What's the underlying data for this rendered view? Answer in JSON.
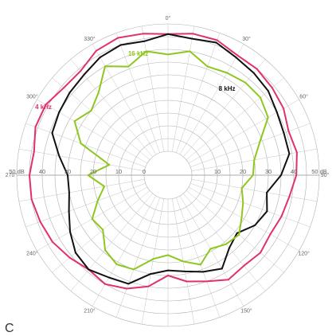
{
  "chart_data": {
    "type": "polar",
    "title": "",
    "grid": true,
    "radial_unit": "dB",
    "radial_range": [
      -50,
      0
    ],
    "ring_step_db": 5,
    "angle_labels": [
      {
        "angle": 0,
        "text": "0°"
      },
      {
        "angle": 30,
        "text": "30°"
      },
      {
        "angle": 60,
        "text": "60°"
      },
      {
        "angle": 90,
        "text": "90°"
      },
      {
        "angle": 120,
        "text": "120°"
      },
      {
        "angle": 150,
        "text": "150°"
      },
      {
        "angle": 210,
        "text": "210°"
      },
      {
        "angle": 240,
        "text": "240°"
      },
      {
        "angle": 270,
        "text": "270°"
      },
      {
        "angle": 300,
        "text": "300°"
      },
      {
        "angle": 330,
        "text": "330°"
      }
    ],
    "db_labels_left": [
      {
        "db": -50,
        "text": "50 dB"
      },
      {
        "db": -40,
        "text": "40"
      },
      {
        "db": -30,
        "text": "30"
      },
      {
        "db": -20,
        "text": "20"
      },
      {
        "db": -10,
        "text": "10"
      },
      {
        "db": 0,
        "text": "0"
      }
    ],
    "db_labels_right": [
      {
        "db": -10,
        "text": "10"
      },
      {
        "db": -20,
        "text": "20"
      },
      {
        "db": -30,
        "text": "30"
      },
      {
        "db": -40,
        "text": "40"
      },
      {
        "db": -50,
        "text": "50 dB"
      }
    ],
    "series": [
      {
        "name": "4 kHz",
        "color": "#e0306e",
        "label_angle": 298,
        "label_db": -46,
        "angles": [
          0,
          10,
          20,
          30,
          40,
          50,
          60,
          70,
          80,
          90,
          100,
          110,
          120,
          130,
          140,
          150,
          160,
          170,
          180,
          190,
          200,
          210,
          220,
          230,
          240,
          250,
          260,
          270,
          280,
          290,
          300,
          310,
          320,
          330,
          340,
          350
        ],
        "values": [
          -46,
          -47,
          -47,
          -45,
          -45,
          -44,
          -43,
          -41,
          -42,
          -41,
          -39,
          -38,
          -37,
          -38,
          -37,
          -38,
          -35,
          -33,
          -30,
          -35,
          -38,
          -40,
          -39,
          -41,
          -43,
          -44,
          -45,
          -45,
          -44,
          -46,
          -46,
          -44,
          -44,
          -47,
          -48,
          -47
        ]
      },
      {
        "name": "8 kHz",
        "color": "#111111",
        "label_angle": 35,
        "label_db": -31,
        "angles": [
          0,
          10,
          20,
          30,
          40,
          50,
          60,
          70,
          80,
          90,
          100,
          110,
          120,
          130,
          140,
          150,
          160,
          170,
          180,
          190,
          200,
          210,
          220,
          230,
          240,
          250,
          260,
          270,
          280,
          290,
          300,
          310,
          320,
          330,
          340,
          350
        ],
        "values": [
          -46,
          -45,
          -46,
          -44,
          -43,
          -42,
          -40,
          -39,
          -39,
          -35,
          -30,
          -32,
          -30,
          -26,
          -28,
          -33,
          -31,
          -29,
          -28,
          -30,
          -36,
          -37,
          -39,
          -38,
          -35,
          -32,
          -30,
          -30,
          -34,
          -39,
          -40,
          -41,
          -42,
          -44,
          -45,
          -44
        ]
      },
      {
        "name": "16 kHz",
        "color": "#8fc61f",
        "label_angle": 346,
        "label_db": -39,
        "angles": [
          0,
          10,
          20,
          30,
          40,
          50,
          60,
          70,
          80,
          90,
          100,
          110,
          120,
          130,
          140,
          150,
          160,
          170,
          180,
          190,
          200,
          210,
          220,
          230,
          240,
          250,
          260,
          270,
          280,
          290,
          300,
          310,
          320,
          330,
          340,
          350
        ],
        "values": [
          -38,
          -40,
          -36,
          -37,
          -38,
          -38,
          -36,
          -29,
          -25,
          -24,
          -20,
          -22,
          -24,
          -27,
          -26,
          -24,
          -28,
          -25,
          -22,
          -24,
          -30,
          -31,
          -29,
          -24,
          -25,
          -20,
          -16,
          -22,
          -14,
          -27,
          -33,
          -30,
          -33,
          -40,
          -36,
          -40
        ]
      }
    ]
  },
  "panel_letter": "C"
}
